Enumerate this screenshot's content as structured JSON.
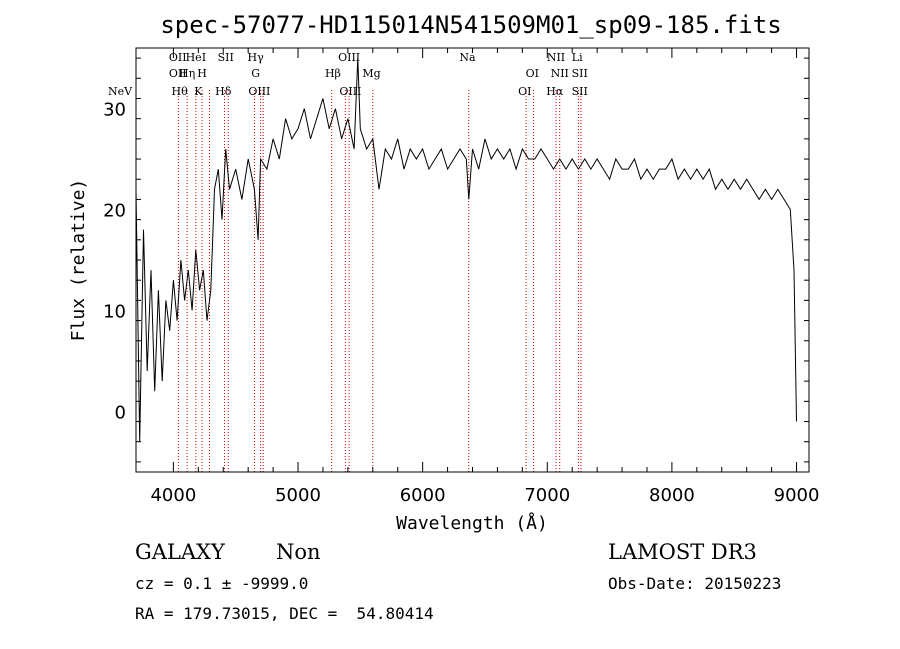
{
  "chart_data": {
    "type": "line",
    "title": "spec-57077-HD115014N541509M01_sp09-185.fits",
    "xlabel": "Wavelength (Å)",
    "ylabel": "Flux (relative)",
    "xlim": [
      3700,
      9100
    ],
    "ylim": [
      -6,
      36
    ],
    "x_ticks": [
      4000,
      5000,
      6000,
      7000,
      8000,
      9000
    ],
    "y_ticks": [
      0,
      10,
      20,
      30
    ],
    "grid": false,
    "line_color": "#000000",
    "marker_color": "#cc0000",
    "series": [
      {
        "x": [
          3700,
          3730,
          3760,
          3790,
          3820,
          3850,
          3880,
          3910,
          3940,
          3970,
          4000,
          4030,
          4060,
          4090,
          4120,
          4150,
          4180,
          4210,
          4240,
          4270,
          4300,
          4330,
          4360,
          4390,
          4420,
          4450,
          4500,
          4550,
          4600,
          4650,
          4680,
          4700,
          4750,
          4800,
          4850,
          4900,
          4950,
          5000,
          5050,
          5100,
          5150,
          5200,
          5250,
          5300,
          5350,
          5400,
          5450,
          5480,
          5500,
          5550,
          5600,
          5650,
          5700,
          5750,
          5800,
          5850,
          5900,
          5950,
          6000,
          6050,
          6100,
          6150,
          6200,
          6250,
          6300,
          6350,
          6370,
          6400,
          6450,
          6500,
          6550,
          6600,
          6650,
          6700,
          6750,
          6800,
          6850,
          6900,
          6950,
          7000,
          7050,
          7100,
          7150,
          7200,
          7250,
          7300,
          7350,
          7400,
          7450,
          7500,
          7550,
          7600,
          7650,
          7700,
          7750,
          7800,
          7850,
          7900,
          7950,
          8000,
          8050,
          8100,
          8150,
          8200,
          8250,
          8300,
          8350,
          8400,
          8450,
          8500,
          8550,
          8600,
          8650,
          8700,
          8750,
          8800,
          8850,
          8900,
          8950,
          8980,
          9000
        ],
        "y": [
          22,
          -3,
          18,
          4,
          14,
          2,
          12,
          3,
          11,
          8,
          13,
          9,
          15,
          11,
          14,
          10,
          16,
          12,
          14,
          9,
          12,
          22,
          24,
          19,
          26,
          22,
          24,
          21,
          25,
          22,
          17,
          25,
          24,
          27,
          25,
          29,
          27,
          28,
          30,
          27,
          29,
          31,
          28,
          30,
          27,
          29,
          26,
          35,
          28,
          26,
          27,
          22,
          26,
          25,
          27,
          24,
          26,
          25,
          26,
          24,
          25,
          26,
          24,
          25,
          26,
          25,
          21,
          26,
          24,
          27,
          25,
          26,
          25,
          26,
          24,
          26,
          25,
          25,
          26,
          25,
          24,
          25,
          24,
          25,
          24,
          25,
          24,
          25,
          24,
          23,
          25,
          24,
          24,
          25,
          23,
          24,
          23,
          24,
          24,
          25,
          23,
          24,
          23,
          24,
          23,
          24,
          22,
          23,
          22,
          23,
          22,
          23,
          22,
          21,
          22,
          21,
          22,
          21,
          20,
          14,
          -1
        ]
      }
    ],
    "line_markers": [
      {
        "label": "NeV",
        "x": 3426,
        "row": 3
      },
      {
        "label": "OII",
        "x": 4035,
        "row": 1
      },
      {
        "label": "OII",
        "x": 4035,
        "row": 2
      },
      {
        "label": "Hθ",
        "x": 4050,
        "row": 3
      },
      {
        "label": "Hη",
        "x": 4110,
        "row": 2
      },
      {
        "label": "HeI",
        "x": 4180,
        "row": 1
      },
      {
        "label": "H",
        "x": 4230,
        "row": 2
      },
      {
        "label": "K",
        "x": 4200,
        "row": 3
      },
      {
        "label": "SII",
        "x": 4420,
        "row": 1
      },
      {
        "label": "Hδ",
        "x": 4400,
        "row": 3
      },
      {
        "label": "Hγ",
        "x": 4660,
        "row": 1
      },
      {
        "label": "G",
        "x": 4660,
        "row": 2
      },
      {
        "label": "OIII",
        "x": 4690,
        "row": 3
      },
      {
        "label": "OIII",
        "x": 5410,
        "row": 1
      },
      {
        "label": "Hβ",
        "x": 5280,
        "row": 2
      },
      {
        "label": "OIII",
        "x": 5420,
        "row": 3
      },
      {
        "label": "Mg",
        "x": 5590,
        "row": 2
      },
      {
        "label": "Na",
        "x": 6360,
        "row": 1
      },
      {
        "label": "OI",
        "x": 6880,
        "row": 2
      },
      {
        "label": "OI",
        "x": 6820,
        "row": 3
      },
      {
        "label": "NII",
        "x": 7070,
        "row": 1
      },
      {
        "label": "NII",
        "x": 7100,
        "row": 2
      },
      {
        "label": "Hα",
        "x": 7060,
        "row": 3
      },
      {
        "label": "SII",
        "x": 7260,
        "row": 2
      },
      {
        "label": "SII",
        "x": 7260,
        "row": 3
      },
      {
        "label": "Li",
        "x": 7240,
        "row": 1
      }
    ],
    "line_marker_x": [
      4040,
      4110,
      4180,
      4230,
      4290,
      4410,
      4440,
      4650,
      4700,
      4720,
      5270,
      5380,
      5410,
      5600,
      6370,
      6830,
      6890,
      7070,
      7100,
      7250,
      7270
    ]
  },
  "info": {
    "class_label": "GALAXY",
    "subclass_label": "Non",
    "cz_line": "cz = 0.1 ± -9999.0",
    "radec_line": "RA = 179.73015, DEC =  54.80414",
    "survey_label": "LAMOST DR3",
    "obs_date_line": "Obs-Date: 20150223"
  }
}
